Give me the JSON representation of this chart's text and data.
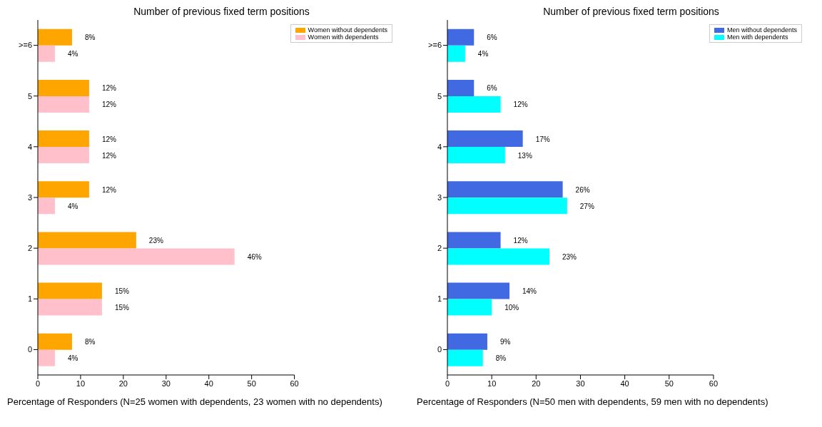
{
  "chart_data": [
    {
      "type": "bar",
      "orientation": "horizontal",
      "title": "Number of previous fixed term positions",
      "xlabel": "Percentage of Responders  (N=25 women with dependents, 23 women with no dependents)",
      "categories": [
        ">=6",
        "5",
        "4",
        "3",
        "2",
        "1",
        "0"
      ],
      "series": [
        {
          "name": "Women without dependents",
          "color": "#ffa500",
          "values": [
            8,
            12,
            12,
            12,
            23,
            15,
            8
          ],
          "value_labels": [
            "8%",
            "12%",
            "12%",
            "12%",
            "23%",
            "15%",
            "8%"
          ]
        },
        {
          "name": "Women with dependents",
          "color": "#ffc0cb",
          "values": [
            4,
            12,
            12,
            4,
            46,
            15,
            4
          ],
          "value_labels": [
            "4%",
            "12%",
            "12%",
            "4%",
            "46%",
            "15%",
            "4%"
          ]
        }
      ],
      "xlim": [
        0,
        60
      ],
      "xticks": [
        0,
        10,
        20,
        30,
        40,
        50,
        60
      ],
      "legend": "top right"
    },
    {
      "type": "bar",
      "orientation": "horizontal",
      "title": "Number of previous fixed term positions",
      "xlabel": "Percentage of Responders  (N=50 men with dependents, 59 men with no dependents)",
      "categories": [
        ">=6",
        "5",
        "4",
        "3",
        "2",
        "1",
        "0"
      ],
      "series": [
        {
          "name": "Men without dependents",
          "color": "#4169e1",
          "values": [
            6,
            6,
            17,
            26,
            12,
            14,
            9
          ],
          "value_labels": [
            "6%",
            "6%",
            "17%",
            "26%",
            "12%",
            "14%",
            "9%"
          ]
        },
        {
          "name": "Men with dependents",
          "color": "#00ffff",
          "values": [
            4,
            12,
            13,
            27,
            23,
            10,
            8
          ],
          "value_labels": [
            "4%",
            "12%",
            "13%",
            "27%",
            "23%",
            "10%",
            "8%"
          ]
        }
      ],
      "xlim": [
        0,
        60
      ],
      "xticks": [
        0,
        10,
        20,
        30,
        40,
        50,
        60
      ],
      "legend": "top right"
    }
  ]
}
